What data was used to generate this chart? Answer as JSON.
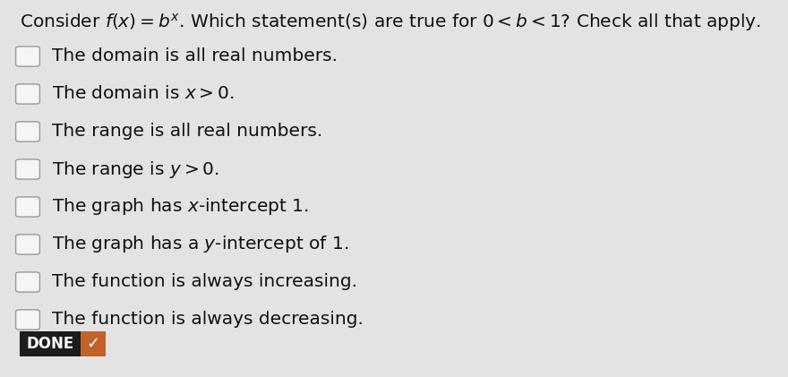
{
  "title": "Consider $f(x) = b^x$. Which statement(s) are true for $0 < b < 1$? Check all that apply.",
  "options": [
    "The domain is all real numbers.",
    "The domain is $x > 0$.",
    "The range is all real numbers.",
    "The range is $y > 0$.",
    "The graph has $x$-intercept 1.",
    "The graph has a $y$-intercept of 1.",
    "The function is always increasing.",
    "The function is always decreasing."
  ],
  "done_text": "DONE",
  "done_bg_color": "#1c1c1c",
  "done_text_color": "#ffffff",
  "done_check_bg": "#c0622a",
  "done_check_color": "#ffffff",
  "bg_color": "#e3e3e3",
  "checkbox_color": "#f5f5f5",
  "checkbox_edge_color": "#999999",
  "text_color": "#111111",
  "font_size": 14.5,
  "title_font_size": 14.5,
  "fig_width": 8.8,
  "fig_height": 4.21,
  "dpi": 100
}
